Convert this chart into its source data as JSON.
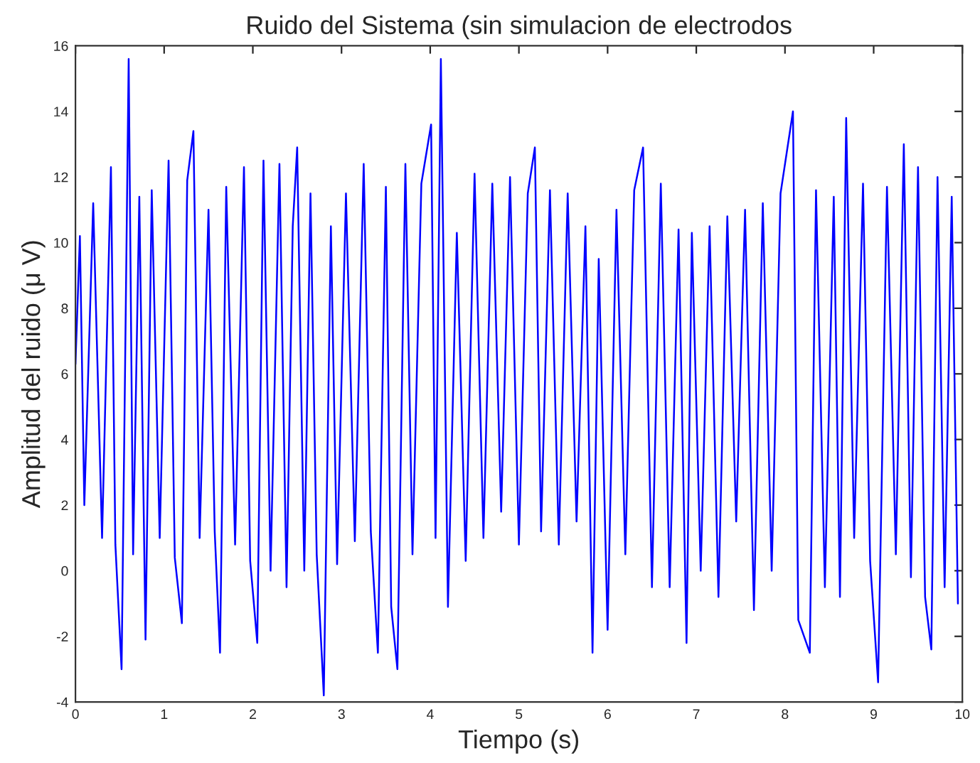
{
  "chart_data": {
    "type": "line",
    "title": "Ruido del Sistema (sin simulacion de electrodos",
    "xlabel": "Tiempo (s)",
    "ylabel": "Amplitud del ruido (μ V)",
    "x": [
      0.0,
      0.05,
      0.1,
      0.2,
      0.3,
      0.4,
      0.45,
      0.52,
      0.6,
      0.65,
      0.72,
      0.79,
      0.86,
      0.95,
      1.05,
      1.12,
      1.2,
      1.26,
      1.33,
      1.4,
      1.5,
      1.57,
      1.63,
      1.7,
      1.8,
      1.9,
      1.97,
      2.05,
      2.12,
      2.2,
      2.3,
      2.38,
      2.45,
      2.5,
      2.58,
      2.65,
      2.72,
      2.8,
      2.88,
      2.95,
      3.05,
      3.15,
      3.25,
      3.33,
      3.41,
      3.5,
      3.56,
      3.63,
      3.72,
      3.8,
      3.9,
      4.01,
      4.06,
      4.12,
      4.2,
      4.3,
      4.4,
      4.5,
      4.6,
      4.7,
      4.8,
      4.9,
      5.0,
      5.1,
      5.18,
      5.25,
      5.35,
      5.45,
      5.55,
      5.65,
      5.75,
      5.83,
      5.9,
      6.0,
      6.1,
      6.2,
      6.3,
      6.4,
      6.5,
      6.6,
      6.7,
      6.8,
      6.89,
      6.95,
      7.05,
      7.15,
      7.25,
      7.35,
      7.45,
      7.55,
      7.65,
      7.75,
      7.85,
      7.95,
      8.09,
      8.15,
      8.28,
      8.35,
      8.45,
      8.55,
      8.62,
      8.69,
      8.78,
      8.88,
      8.96,
      9.05,
      9.15,
      9.25,
      9.34,
      9.42,
      9.5,
      9.58,
      9.65,
      9.72,
      9.8,
      9.88,
      9.95
    ],
    "series": [
      {
        "color": "#0000ff",
        "values": [
          6.3,
          10.2,
          2.0,
          11.2,
          1.0,
          12.3,
          0.8,
          -3.0,
          15.6,
          0.5,
          11.4,
          -2.1,
          11.6,
          1.0,
          12.5,
          0.4,
          -1.6,
          11.9,
          13.4,
          1.0,
          11.0,
          1.2,
          -2.5,
          11.7,
          0.8,
          12.3,
          0.3,
          -2.2,
          12.5,
          0.0,
          12.4,
          -0.5,
          10.5,
          12.9,
          0.0,
          11.5,
          0.5,
          -3.8,
          10.5,
          0.2,
          11.5,
          0.9,
          12.4,
          1.2,
          -2.5,
          11.7,
          -1.1,
          -3.0,
          12.4,
          0.5,
          11.8,
          13.6,
          1.0,
          15.6,
          -1.1,
          10.3,
          0.3,
          12.1,
          1.0,
          11.8,
          1.8,
          12.0,
          0.8,
          11.5,
          12.9,
          1.2,
          11.6,
          0.8,
          11.5,
          1.5,
          10.5,
          -2.5,
          9.5,
          -1.8,
          11.0,
          0.5,
          11.6,
          12.9,
          -0.5,
          11.8,
          -0.5,
          10.4,
          -2.2,
          10.3,
          0.0,
          10.5,
          -0.8,
          10.8,
          1.5,
          11.0,
          -1.2,
          11.2,
          0.0,
          11.5,
          14.0,
          -1.5,
          -2.5,
          11.6,
          -0.5,
          11.4,
          -0.8,
          13.8,
          1.0,
          11.8,
          0.3,
          -3.4,
          11.7,
          0.5,
          13.0,
          -0.2,
          12.3,
          -0.8,
          -2.4,
          12.0,
          -0.5,
          11.4,
          -1.0
        ]
      }
    ],
    "xlim": [
      0,
      10
    ],
    "ylim": [
      -4,
      16
    ],
    "xticks": [
      0,
      1,
      2,
      3,
      4,
      5,
      6,
      7,
      8,
      9,
      10
    ],
    "yticks": [
      -4,
      -2,
      0,
      2,
      4,
      6,
      8,
      10,
      12,
      14,
      16
    ],
    "grid": false,
    "legend": false
  }
}
